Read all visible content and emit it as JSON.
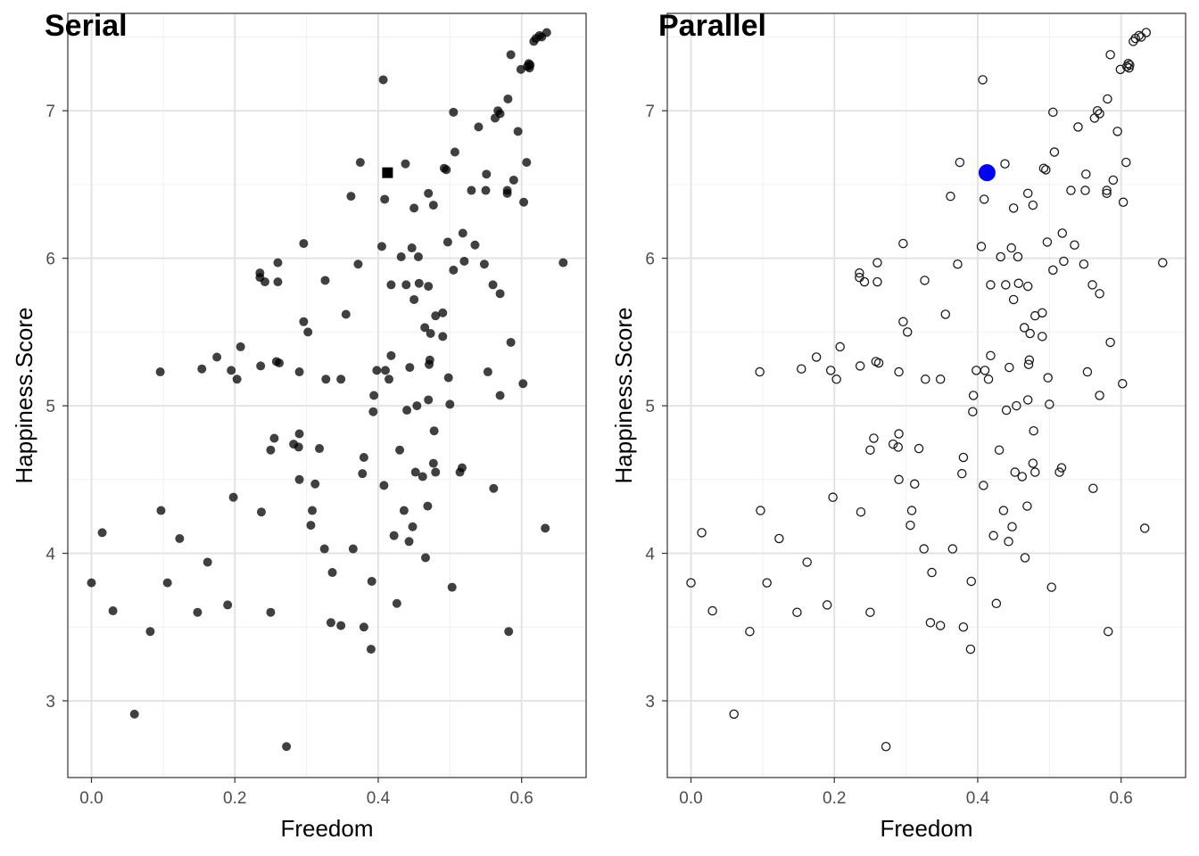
{
  "chart_data": [
    {
      "type": "scatter",
      "title": "Serial",
      "xlabel": "Freedom",
      "ylabel": "Happiness.Score",
      "xlim": [
        -0.033,
        0.69
      ],
      "ylim": [
        2.48,
        7.66
      ],
      "xticks": [
        0.0,
        0.2,
        0.4,
        0.6
      ],
      "xtick_labels": [
        "0.0",
        "0.2",
        "0.4",
        "0.6"
      ],
      "yticks": [
        3,
        4,
        5,
        6,
        7
      ],
      "ytick_labels": [
        "3",
        "4",
        "5",
        "6",
        "7"
      ],
      "grid": true,
      "marker_style": "filled-dark",
      "highlight": {
        "x": 0.413,
        "y": 6.58,
        "marker": "square",
        "color": "#000000"
      }
    },
    {
      "type": "scatter",
      "title": "Parallel",
      "xlabel": "Freedom",
      "ylabel": "Happiness.Score",
      "xlim": [
        -0.033,
        0.69
      ],
      "ylim": [
        2.48,
        7.66
      ],
      "xticks": [
        0.0,
        0.2,
        0.4,
        0.6
      ],
      "xtick_labels": [
        "0.0",
        "0.2",
        "0.4",
        "0.6"
      ],
      "yticks": [
        3,
        4,
        5,
        6,
        7
      ],
      "ytick_labels": [
        "3",
        "4",
        "5",
        "6",
        "7"
      ],
      "grid": true,
      "marker_style": "hollow",
      "highlight": {
        "x": 0.413,
        "y": 6.58,
        "marker": "circle",
        "color": "#0000ff"
      }
    }
  ],
  "points": [
    [
      0.0,
      3.8
    ],
    [
      0.015,
      4.14
    ],
    [
      0.03,
      3.61
    ],
    [
      0.06,
      2.91
    ],
    [
      0.082,
      3.47
    ],
    [
      0.096,
      5.23
    ],
    [
      0.097,
      4.29
    ],
    [
      0.106,
      3.8
    ],
    [
      0.123,
      4.1
    ],
    [
      0.148,
      3.6
    ],
    [
      0.154,
      5.25
    ],
    [
      0.162,
      3.94
    ],
    [
      0.175,
      5.33
    ],
    [
      0.19,
      3.65
    ],
    [
      0.195,
      5.24
    ],
    [
      0.198,
      4.38
    ],
    [
      0.203,
      5.18
    ],
    [
      0.208,
      5.4
    ],
    [
      0.235,
      5.9
    ],
    [
      0.235,
      5.87
    ],
    [
      0.236,
      5.27
    ],
    [
      0.237,
      4.28
    ],
    [
      0.242,
      5.84
    ],
    [
      0.25,
      4.7
    ],
    [
      0.25,
      3.6
    ],
    [
      0.255,
      4.78
    ],
    [
      0.258,
      5.3
    ],
    [
      0.26,
      5.84
    ],
    [
      0.26,
      5.97
    ],
    [
      0.262,
      5.29
    ],
    [
      0.272,
      2.69
    ],
    [
      0.282,
      4.74
    ],
    [
      0.29,
      4.81
    ],
    [
      0.289,
      4.72
    ],
    [
      0.29,
      5.23
    ],
    [
      0.29,
      4.5
    ],
    [
      0.296,
      6.1
    ],
    [
      0.296,
      5.57
    ],
    [
      0.302,
      5.5
    ],
    [
      0.306,
      4.19
    ],
    [
      0.308,
      4.29
    ],
    [
      0.312,
      4.47
    ],
    [
      0.318,
      4.71
    ],
    [
      0.325,
      4.03
    ],
    [
      0.326,
      5.85
    ],
    [
      0.327,
      5.18
    ],
    [
      0.334,
      3.53
    ],
    [
      0.336,
      3.87
    ],
    [
      0.348,
      3.51
    ],
    [
      0.348,
      5.18
    ],
    [
      0.355,
      5.62
    ],
    [
      0.362,
      6.42
    ],
    [
      0.365,
      4.03
    ],
    [
      0.372,
      5.96
    ],
    [
      0.375,
      6.65
    ],
    [
      0.378,
      4.54
    ],
    [
      0.38,
      4.65
    ],
    [
      0.38,
      3.5
    ],
    [
      0.39,
      3.35
    ],
    [
      0.391,
      3.81
    ],
    [
      0.393,
      4.96
    ],
    [
      0.394,
      5.07
    ],
    [
      0.398,
      5.24
    ],
    [
      0.405,
      6.08
    ],
    [
      0.407,
      7.21
    ],
    [
      0.408,
      4.46
    ],
    [
      0.409,
      6.4
    ],
    [
      0.41,
      5.24
    ],
    [
      0.415,
      5.18
    ],
    [
      0.418,
      5.34
    ],
    [
      0.418,
      5.82
    ],
    [
      0.422,
      4.12
    ],
    [
      0.426,
      3.66
    ],
    [
      0.43,
      4.7
    ],
    [
      0.432,
      6.01
    ],
    [
      0.436,
      4.29
    ],
    [
      0.438,
      6.64
    ],
    [
      0.439,
      5.82
    ],
    [
      0.44,
      4.97
    ],
    [
      0.443,
      4.08
    ],
    [
      0.444,
      5.26
    ],
    [
      0.447,
      6.07
    ],
    [
      0.448,
      4.18
    ],
    [
      0.45,
      5.72
    ],
    [
      0.45,
      6.34
    ],
    [
      0.452,
      4.55
    ],
    [
      0.454,
      5.0
    ],
    [
      0.456,
      6.01
    ],
    [
      0.457,
      5.83
    ],
    [
      0.462,
      4.52
    ],
    [
      0.465,
      5.53
    ],
    [
      0.466,
      3.97
    ],
    [
      0.469,
      4.32
    ],
    [
      0.47,
      5.04
    ],
    [
      0.47,
      6.44
    ],
    [
      0.47,
      5.81
    ],
    [
      0.471,
      5.28
    ],
    [
      0.472,
      5.31
    ],
    [
      0.473,
      5.49
    ],
    [
      0.477,
      6.36
    ],
    [
      0.477,
      4.61
    ],
    [
      0.478,
      4.83
    ],
    [
      0.48,
      5.61
    ],
    [
      0.48,
      4.55
    ],
    [
      0.49,
      5.47
    ],
    [
      0.49,
      5.63
    ],
    [
      0.492,
      6.61
    ],
    [
      0.495,
      6.6
    ],
    [
      0.497,
      6.11
    ],
    [
      0.498,
      5.19
    ],
    [
      0.5,
      5.01
    ],
    [
      0.503,
      3.77
    ],
    [
      0.505,
      5.92
    ],
    [
      0.505,
      6.99
    ],
    [
      0.507,
      6.72
    ],
    [
      0.514,
      4.55
    ],
    [
      0.517,
      4.58
    ],
    [
      0.518,
      6.17
    ],
    [
      0.52,
      5.98
    ],
    [
      0.53,
      6.46
    ],
    [
      0.535,
      6.09
    ],
    [
      0.54,
      6.89
    ],
    [
      0.548,
      5.96
    ],
    [
      0.55,
      6.46
    ],
    [
      0.551,
      6.57
    ],
    [
      0.553,
      5.23
    ],
    [
      0.56,
      5.82
    ],
    [
      0.561,
      4.44
    ],
    [
      0.563,
      6.95
    ],
    [
      0.567,
      7.0
    ],
    [
      0.57,
      6.98
    ],
    [
      0.57,
      5.76
    ],
    [
      0.57,
      5.07
    ],
    [
      0.58,
      6.44
    ],
    [
      0.58,
      6.46
    ],
    [
      0.581,
      7.08
    ],
    [
      0.582,
      3.47
    ],
    [
      0.585,
      7.38
    ],
    [
      0.585,
      5.43
    ],
    [
      0.589,
      6.53
    ],
    [
      0.595,
      6.86
    ],
    [
      0.599,
      7.28
    ],
    [
      0.602,
      5.15
    ],
    [
      0.603,
      6.38
    ],
    [
      0.607,
      6.65
    ],
    [
      0.608,
      7.3
    ],
    [
      0.61,
      7.32
    ],
    [
      0.611,
      7.29
    ],
    [
      0.612,
      7.31
    ],
    [
      0.617,
      7.47
    ],
    [
      0.62,
      7.49
    ],
    [
      0.625,
      7.51
    ],
    [
      0.628,
      7.5
    ],
    [
      0.633,
      4.17
    ],
    [
      0.635,
      7.53
    ],
    [
      0.658,
      5.97
    ]
  ]
}
